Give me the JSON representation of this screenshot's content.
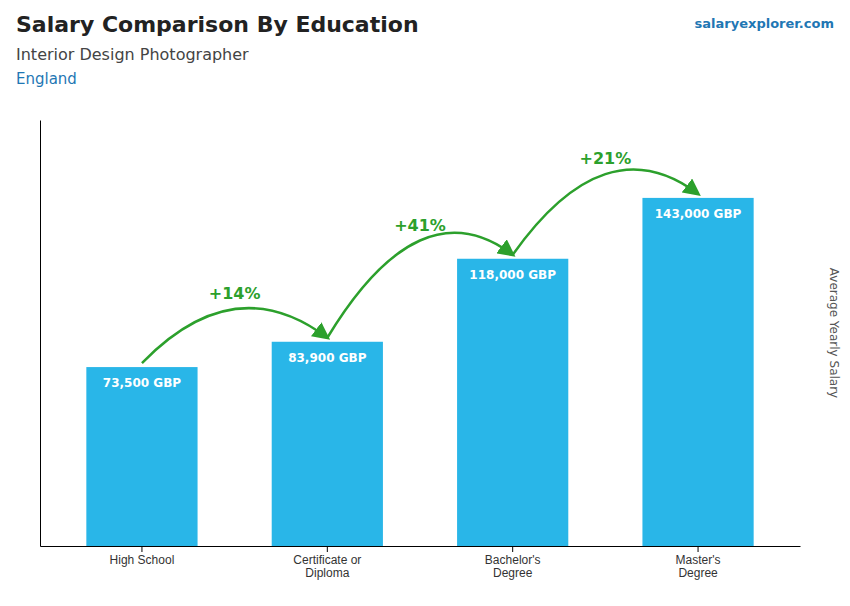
{
  "chart_data": {
    "type": "bar",
    "title": "Salary Comparison By Education",
    "subtitle": "Interior Design Photographer",
    "location": "England",
    "brand": "salaryexplorer.com",
    "ylabel": "Average Yearly Salary",
    "categories": [
      "High School",
      "Certificate or\nDiploma",
      "Bachelor's\nDegree",
      "Master's\nDegree"
    ],
    "values": [
      73500,
      83900,
      118000,
      143000
    ],
    "value_labels": [
      "73,500 GBP",
      "83,900 GBP",
      "118,000 GBP",
      "143,000 GBP"
    ],
    "data_labels": true,
    "annotations": [
      "+14%",
      "+41%",
      "+21%"
    ],
    "color": "#29b6e8",
    "ylim": [
      0,
      175000
    ],
    "grid": false,
    "tick_labels": "x"
  }
}
